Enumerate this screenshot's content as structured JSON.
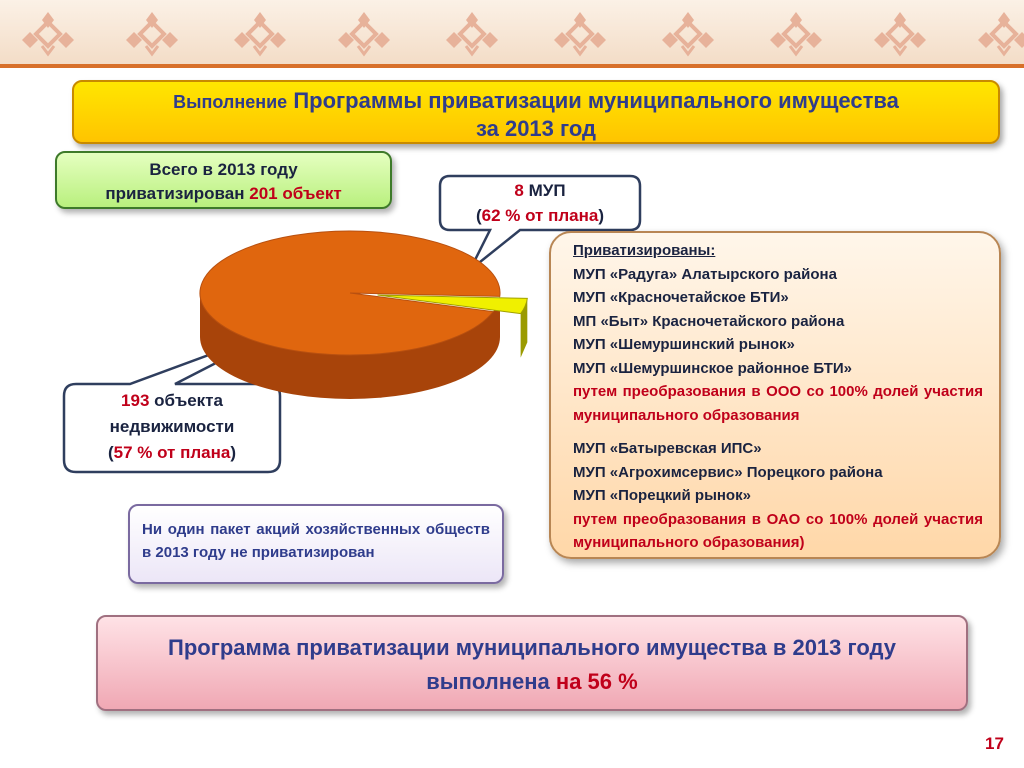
{
  "title": {
    "line1_small": "Выполнение",
    "line1": "Программы приватизации муниципального имущества",
    "line2": "за 2013 год"
  },
  "total": {
    "line1": "Всего в 2013 году",
    "line2_prefix": "приватизирован",
    "count": "201 объект"
  },
  "callout_mup": {
    "count": "8",
    "unit": "МУП",
    "paren_open": "(",
    "percent": "62 % от плана",
    "paren_close": ")"
  },
  "callout_objects": {
    "count": "193",
    "unit": "объекта",
    "line2": "недвижимости",
    "paren_open": "(",
    "percent": "57 % от плана",
    "paren_close": ")"
  },
  "list": {
    "header": "Приватизированы:",
    "group1": [
      "МУП «Радуга» Алатырского района",
      "МУП «Красночетайское БТИ»",
      "МП «Быт» Красночетайского района",
      "МУП «Шемуршинский рынок»",
      "МУП «Шемуршинское районное БТИ»"
    ],
    "group1_note": "путем преобразования в ООО со 100% долей участия муниципального образования",
    "group2": [
      "МУП «Батыревская ИПС»",
      "МУП «Агрохимсервис» Порецкого района",
      "МУП «Порецкий рынок»"
    ],
    "group2_note": "путем преобразования в ОАО со 100% долей участия муниципального образования)"
  },
  "note": "Ни один пакет акций хозяйственных обществ в 2013 году не приватизирован",
  "result": {
    "line1": "Программа приватизации муниципального имущества в 2013 году",
    "line2_prefix": "выполнена",
    "line2_value": "на 56 %"
  },
  "page_number": "17",
  "colors": {
    "title_fill": "#ffd200",
    "pie_main": "#e0660e",
    "pie_slice": "#f0f000",
    "accent_red": "#c0001a",
    "text_blue": "#2f3c8c"
  },
  "chart_data": {
    "type": "pie",
    "categories": [
      "объекты недвижимости",
      "МУП"
    ],
    "values": [
      193,
      8
    ],
    "title": "",
    "style": "3d",
    "slice_colors": [
      "#e0660e",
      "#f0f000"
    ]
  }
}
